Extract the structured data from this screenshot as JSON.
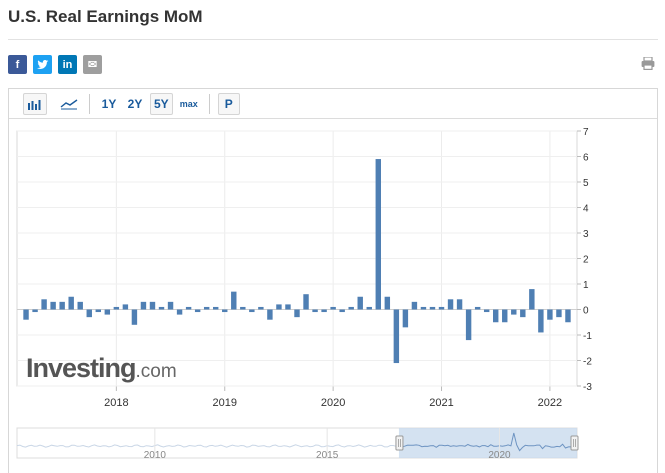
{
  "page": {
    "title": "U.S. Real Earnings MoM"
  },
  "share": {
    "facebook": "f",
    "twitter": "t",
    "linkedin": "in",
    "email": "✉"
  },
  "icons": {
    "share": [
      "facebook-icon",
      "twitter-icon",
      "linkedin-icon",
      "email-icon"
    ],
    "print": "printer-icon"
  },
  "colors": {
    "bar": "#4f7fb3",
    "facebook": "#3b5998",
    "twitter": "#1da1f2",
    "linkedin": "#0077b5",
    "email": "#9e9e9e",
    "navigator_fill": "#c9dbee",
    "navigator_line": "#6e94c2"
  },
  "toolbar": {
    "bar_chart_icon": "bar-chart-icon",
    "line_chart_icon": "line-chart-icon",
    "ranges": [
      "1Y",
      "2Y",
      "5Y",
      "max"
    ],
    "selected_range": "5Y",
    "p_label": "P"
  },
  "chart_data": {
    "type": "bar",
    "series": [
      {
        "name": "",
        "points": [
          [
            "2017-03",
            -0.4
          ],
          [
            "2017-04",
            -0.1
          ],
          [
            "2017-05",
            0.4
          ],
          [
            "2017-06",
            0.3
          ],
          [
            "2017-07",
            0.3
          ],
          [
            "2017-08",
            0.5
          ],
          [
            "2017-09",
            0.3
          ],
          [
            "2017-10",
            -0.3
          ],
          [
            "2017-11",
            -0.1
          ],
          [
            "2017-12",
            -0.2
          ],
          [
            "2018-01",
            0.1
          ],
          [
            "2018-02",
            0.2
          ],
          [
            "2018-03",
            -0.6
          ],
          [
            "2018-04",
            0.3
          ],
          [
            "2018-05",
            0.3
          ],
          [
            "2018-06",
            0.1
          ],
          [
            "2018-07",
            0.3
          ],
          [
            "2018-08",
            -0.2
          ],
          [
            "2018-09",
            0.1
          ],
          [
            "2018-10",
            -0.1
          ],
          [
            "2018-11",
            0.1
          ],
          [
            "2018-12",
            0.1
          ],
          [
            "2019-01",
            -0.1
          ],
          [
            "2019-02",
            0.7
          ],
          [
            "2019-03",
            0.1
          ],
          [
            "2019-04",
            -0.1
          ],
          [
            "2019-05",
            0.1
          ],
          [
            "2019-06",
            -0.4
          ],
          [
            "2019-07",
            0.2
          ],
          [
            "2019-08",
            0.2
          ],
          [
            "2019-09",
            -0.3
          ],
          [
            "2019-10",
            0.6
          ],
          [
            "2019-11",
            -0.1
          ],
          [
            "2019-12",
            -0.1
          ],
          [
            "2020-01",
            0.1
          ],
          [
            "2020-02",
            -0.1
          ],
          [
            "2020-03",
            0.1
          ],
          [
            "2020-04",
            0.5
          ],
          [
            "2020-05",
            0.1
          ],
          [
            "2020-06",
            5.9
          ],
          [
            "2020-07",
            0.5
          ],
          [
            "2020-08",
            -2.1
          ],
          [
            "2020-09",
            -0.7
          ],
          [
            "2020-10",
            0.3
          ],
          [
            "2020-11",
            0.1
          ],
          [
            "2020-12",
            0.1
          ],
          [
            "2021-01",
            0.1
          ],
          [
            "2021-02",
            0.4
          ],
          [
            "2021-03",
            0.4
          ],
          [
            "2021-04",
            -1.2
          ],
          [
            "2021-05",
            0.1
          ],
          [
            "2021-06",
            -0.1
          ],
          [
            "2021-07",
            -0.5
          ],
          [
            "2021-08",
            -0.5
          ],
          [
            "2021-09",
            -0.2
          ],
          [
            "2021-10",
            -0.3
          ],
          [
            "2021-11",
            0.8
          ],
          [
            "2021-12",
            -0.9
          ],
          [
            "2022-01",
            -0.4
          ],
          [
            "2022-02",
            -0.3
          ],
          [
            "2022-03",
            -0.5
          ]
        ]
      }
    ],
    "x_range": [
      "2017-02",
      "2022-04"
    ],
    "x_ticks": [
      "2018",
      "2019",
      "2020",
      "2021",
      "2022"
    ],
    "ylim": [
      -3,
      7
    ],
    "y_ticks": [
      "7",
      "6",
      "5",
      "4",
      "3",
      "2",
      "1",
      "0",
      "-1",
      "-2",
      "-3"
    ],
    "grid": true,
    "legend": "none",
    "watermark": "Investing.com",
    "navigator": {
      "labels": [
        "2010",
        "2015",
        "2020"
      ],
      "visible_from": "2017-02"
    }
  }
}
